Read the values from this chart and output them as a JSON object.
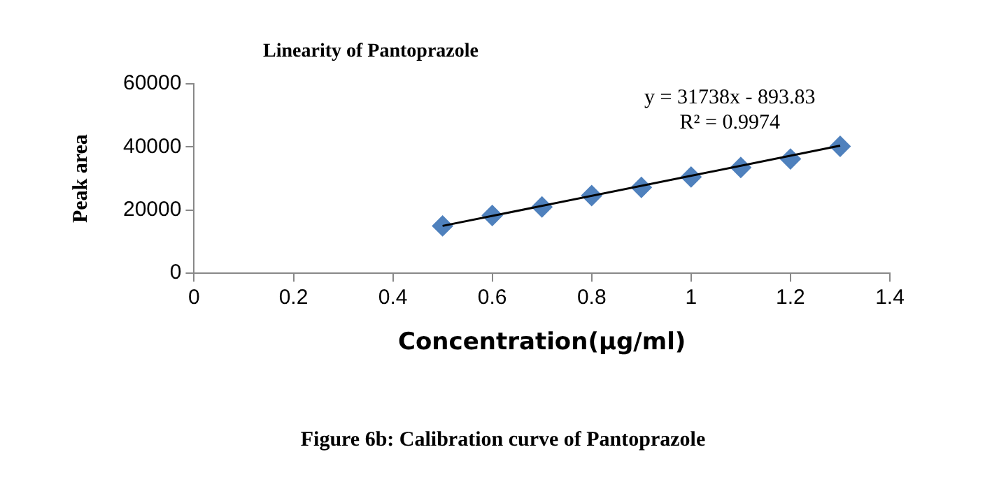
{
  "chart_data": {
    "type": "scatter",
    "title": "Linearity of Pantoprazole",
    "xlabel": "Concentration(µg/ml)",
    "ylabel": "Peak area",
    "x": [
      0.5,
      0.6,
      0.7,
      0.8,
      0.9,
      1.0,
      1.1,
      1.2,
      1.3
    ],
    "series": [
      {
        "color": "#4f81bd",
        "values": [
          15000,
          18300,
          21000,
          24600,
          27200,
          30500,
          33500,
          36200,
          40200
        ],
        "marker": "diamond"
      },
      {
        "type": "line",
        "color": "#000000",
        "x": [
          0.5,
          1.3
        ],
        "values": [
          15000,
          40400
        ],
        "marker": "none"
      }
    ],
    "xlim": [
      0,
      1.4
    ],
    "xticks": [
      0,
      0.2,
      0.4,
      0.6,
      0.8,
      1,
      1.2,
      1.4
    ],
    "ylim": [
      0,
      60000
    ],
    "yticks": [
      0,
      20000,
      40000,
      60000
    ],
    "grid": false,
    "legend": false,
    "annotations": [
      "y = 31738x - 893.83\nR² = 0.9974",
      "Figure 6b: Calibration curve of Pantoprazole"
    ]
  }
}
